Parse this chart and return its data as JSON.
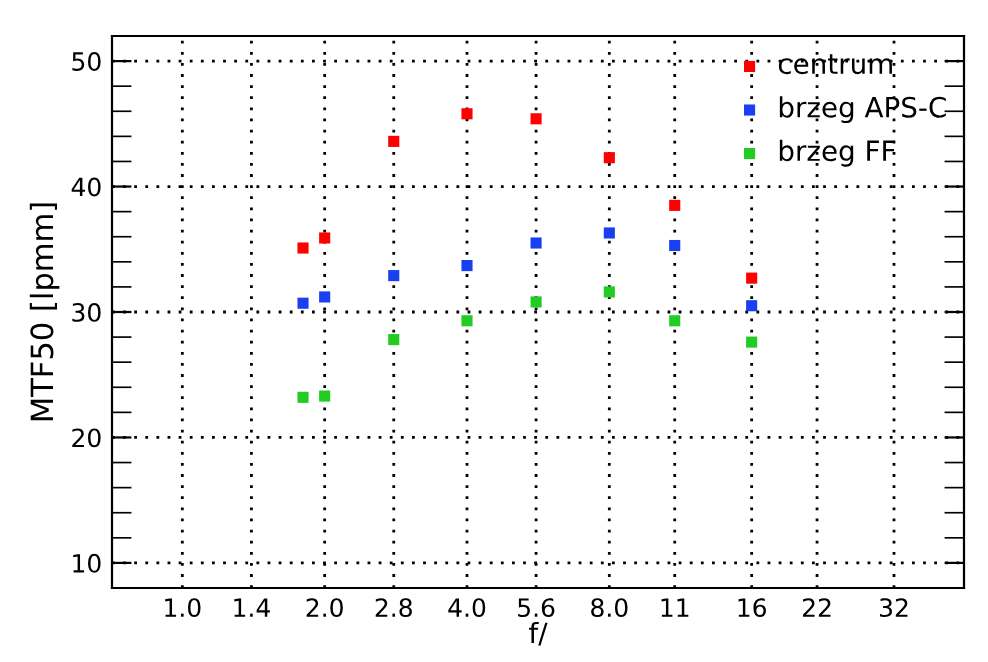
{
  "chart_data": {
    "type": "scatter",
    "xlabel": "f/",
    "ylabel": "MTF50 [lpmm]",
    "x": [
      1.8,
      2.0,
      2.8,
      4.0,
      5.6,
      8.0,
      11,
      16
    ],
    "log": "x",
    "xlim": [
      0.71,
      45
    ],
    "ylim": [
      8,
      52
    ],
    "xticks": [
      {
        "value": 1.0,
        "label": "1.0"
      },
      {
        "value": 1.4,
        "label": "1.4"
      },
      {
        "value": 2.0,
        "label": "2.0"
      },
      {
        "value": 2.8,
        "label": "2.8"
      },
      {
        "value": 4.0,
        "label": "4.0"
      },
      {
        "value": 5.6,
        "label": "5.6"
      },
      {
        "value": 8.0,
        "label": "8.0"
      },
      11,
      16,
      22,
      32
    ],
    "yticks": [
      10,
      {
        "value": 12,
        "label": null
      },
      {
        "value": 14,
        "label": null
      },
      {
        "value": 16,
        "label": null
      },
      {
        "value": 18,
        "label": null
      },
      20,
      {
        "value": 22,
        "label": null
      },
      {
        "value": 24,
        "label": null
      },
      {
        "value": 26,
        "label": null
      },
      {
        "value": 28,
        "label": null
      },
      30,
      {
        "value": 32,
        "label": null
      },
      {
        "value": 34,
        "label": null
      },
      {
        "value": 36,
        "label": null
      },
      {
        "value": 38,
        "label": null
      },
      40,
      {
        "value": 42,
        "label": null
      },
      {
        "value": 44,
        "label": null
      },
      {
        "value": 46,
        "label": null
      },
      {
        "value": 48,
        "label": null
      },
      50
    ],
    "grid": true,
    "legend": "top right",
    "marker": "square",
    "series": [
      {
        "name": "centrum",
        "color": "#ff0000",
        "values": [
          35.1,
          35.9,
          43.6,
          45.8,
          45.4,
          42.3,
          38.5,
          32.7
        ]
      },
      {
        "name": "brzeg APS-C",
        "color": "#1a3ff0",
        "values": [
          30.7,
          31.2,
          32.9,
          33.7,
          35.5,
          36.3,
          35.3,
          30.5
        ]
      },
      {
        "name": "brzeg FF",
        "color": "#22cc22",
        "values": [
          23.2,
          23.3,
          27.8,
          29.3,
          30.8,
          31.6,
          29.3,
          27.6
        ]
      }
    ]
  }
}
